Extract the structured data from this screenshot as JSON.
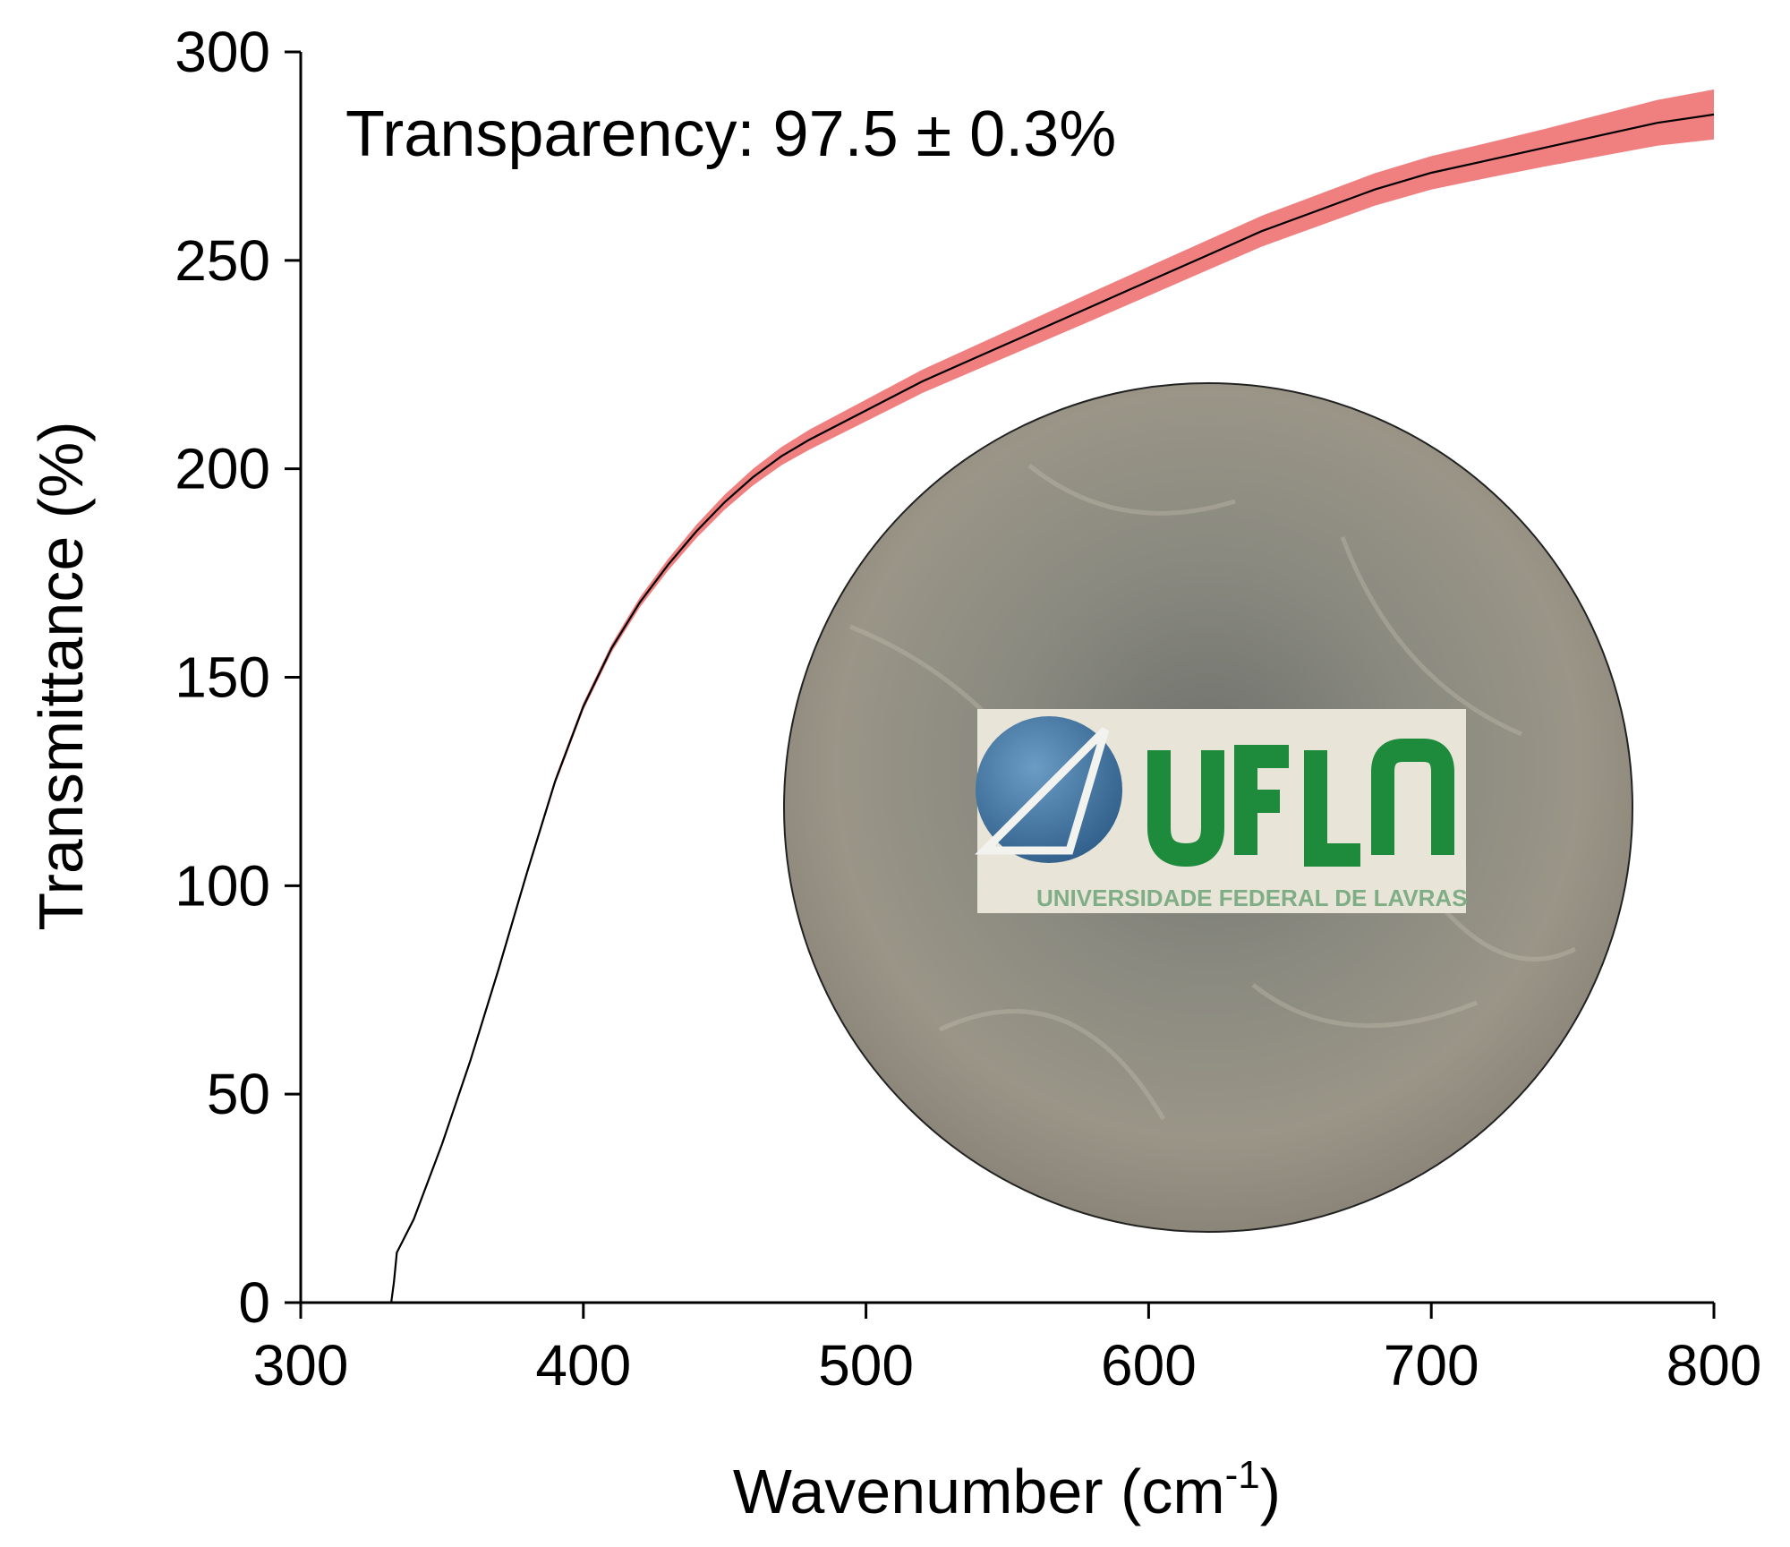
{
  "chart_data": {
    "type": "line",
    "xlabel": "Wavenumber (cm",
    "xlabel_sup": "-1",
    "xlabel_end": ")",
    "ylabel": "Transmittance (%)",
    "xlim": [
      300,
      800
    ],
    "ylim": [
      0,
      300
    ],
    "xticks": [
      300,
      400,
      500,
      600,
      700,
      800
    ],
    "yticks": [
      0,
      50,
      100,
      150,
      200,
      250,
      300
    ],
    "annotation": "Transparency: 97.5 ± 0.3%",
    "grid": false,
    "legend": "none",
    "series": [
      {
        "color": "#000000",
        "band_color": "#f08080",
        "x": [
          325,
          332,
          333,
          334,
          340,
          350,
          360,
          370,
          380,
          390,
          400,
          410,
          420,
          430,
          440,
          450,
          460,
          470,
          480,
          500,
          520,
          540,
          560,
          580,
          600,
          620,
          640,
          660,
          680,
          700,
          720,
          740,
          760,
          780,
          800
        ],
        "y": [
          0,
          0,
          5,
          12,
          20,
          38,
          58,
          80,
          103,
          125,
          143,
          157,
          168,
          177,
          185,
          192,
          198,
          203,
          207,
          214,
          221,
          227,
          233,
          239,
          245,
          251,
          257,
          262,
          267,
          271,
          274,
          277,
          280,
          283,
          285
        ],
        "band_halfwidth": [
          0,
          0,
          0,
          0,
          0.3,
          0.4,
          0.5,
          0.6,
          0.7,
          0.8,
          0.9,
          1.0,
          1.2,
          1.4,
          1.6,
          1.8,
          2.0,
          2.2,
          2.4,
          2.6,
          2.8,
          3.0,
          3.2,
          3.4,
          3.5,
          3.6,
          3.7,
          3.8,
          3.9,
          4.0,
          4.2,
          4.5,
          5.0,
          5.5,
          6.0
        ]
      }
    ],
    "inset": {
      "type": "photo",
      "logo_text": "UFLA",
      "logo_subtitle": "UNIVERSIDADE FEDERAL DE LAVRAS"
    }
  },
  "colors": {
    "axis": "#000000",
    "band": "#f08080",
    "line": "#000000",
    "photo_bg": "#8e8d82",
    "logo_green": "#1e8a3c",
    "logo_blue": "#3d6f9a"
  }
}
